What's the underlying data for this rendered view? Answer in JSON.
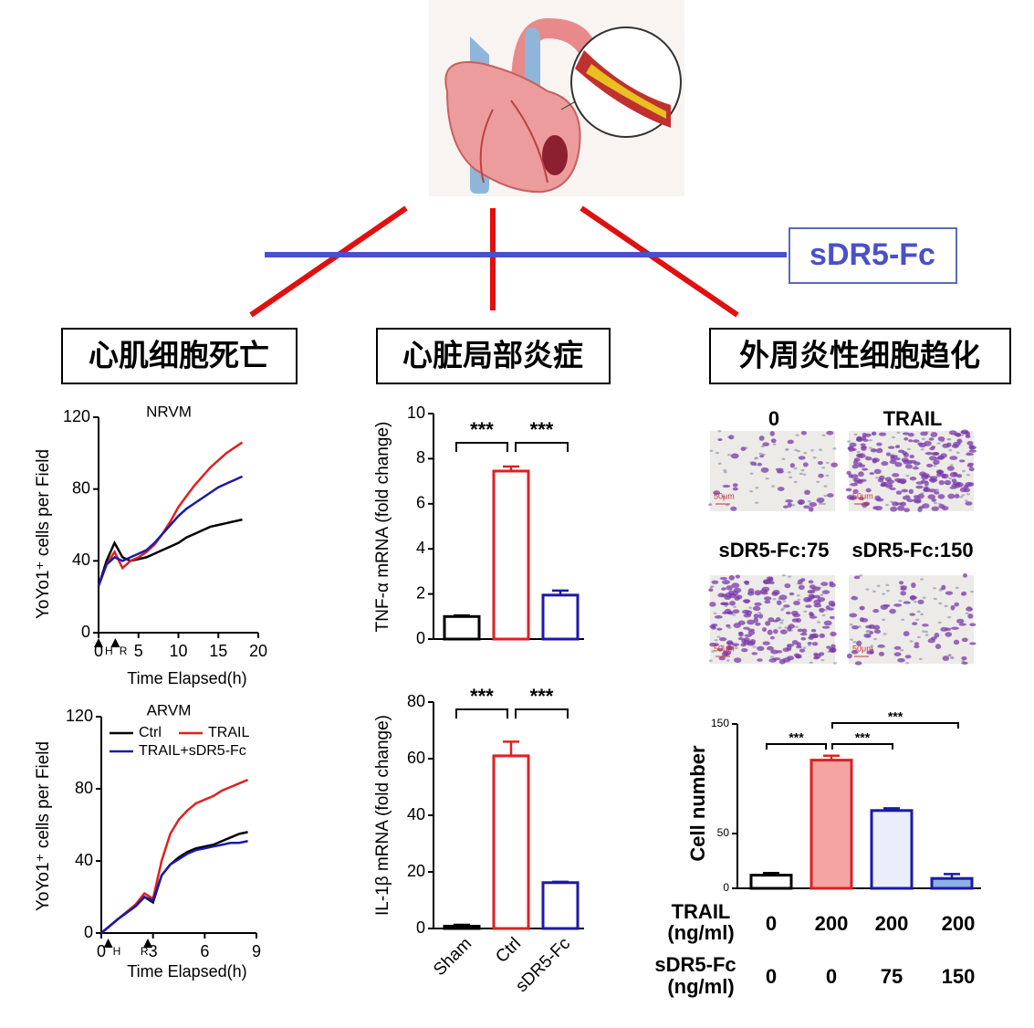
{
  "label_box": "sDR5-Fc",
  "headings": [
    "心肌细胞死亡",
    "心脏局部炎症",
    "外周炎性细胞趋化"
  ],
  "micrographs": {
    "labels": [
      "0",
      "TRAIL",
      "sDR5-Fc:75",
      "sDR5-Fc:150"
    ],
    "scale_bar": "50μm"
  },
  "conditions": {
    "rows": [
      {
        "label": [
          "TRAIL",
          "(ng/ml)"
        ],
        "values": [
          0,
          200,
          200,
          200
        ]
      },
      {
        "label": [
          "sDR5-Fc",
          "(ng/ml)"
        ],
        "values": [
          0,
          0,
          75,
          150
        ]
      }
    ]
  },
  "chart_data": [
    {
      "type": "line",
      "title": "NRVM",
      "y_label": "YoYo1⁺ cells per Field",
      "x_label": "Time Elapsed(h)",
      "x": [
        0,
        1,
        2,
        3,
        4,
        5,
        6,
        7,
        8,
        9,
        10,
        11,
        12,
        13,
        14,
        15,
        16,
        17,
        18
      ],
      "series": [
        {
          "color": "#000000",
          "values": [
            26,
            40,
            50,
            42,
            40,
            41,
            42,
            44,
            46,
            48,
            50,
            53,
            55,
            57,
            59,
            60,
            61,
            62,
            63
          ]
        },
        {
          "color": "#e02020",
          "values": [
            26,
            38,
            45,
            36,
            40,
            42,
            45,
            49,
            55,
            62,
            70,
            76,
            82,
            87,
            92,
            96,
            100,
            103,
            106
          ]
        },
        {
          "color": "#1a1aa8",
          "values": [
            26,
            38,
            42,
            40,
            42,
            44,
            46,
            50,
            55,
            60,
            65,
            69,
            72,
            75,
            78,
            81,
            83,
            85,
            87
          ]
        }
      ],
      "xlim": [
        0,
        20
      ],
      "xticks": [
        0,
        5,
        10,
        15,
        20
      ],
      "ylim": [
        0,
        120
      ],
      "yticks": [
        0,
        40,
        80,
        120
      ],
      "annotations": [
        "H",
        "R"
      ]
    },
    {
      "type": "line",
      "title": "ARVM",
      "y_label": "YoYo1⁺ cells per Field",
      "x_label": "Time Elapsed(h)",
      "x": [
        0,
        1,
        2,
        2.5,
        3,
        3.5,
        4,
        4.5,
        5,
        5.5,
        6,
        6.5,
        7,
        7.5,
        8,
        8.5
      ],
      "series": [
        {
          "name": "Ctrl",
          "color": "#000000",
          "values": [
            0,
            8,
            15,
            20,
            17,
            32,
            38,
            42,
            45,
            47,
            48,
            49,
            51,
            53,
            55,
            56
          ]
        },
        {
          "name": "TRAIL",
          "color": "#e02020",
          "values": [
            0,
            8,
            16,
            22,
            19,
            40,
            55,
            63,
            68,
            72,
            74,
            76,
            79,
            81,
            83,
            85
          ]
        },
        {
          "name": "TRAIL+sDR5-Fc",
          "color": "#1a1aa8",
          "values": [
            0,
            8,
            15,
            20,
            18,
            32,
            38,
            41,
            44,
            46,
            47,
            48,
            49,
            50,
            50,
            51
          ]
        }
      ],
      "xlim": [
        0,
        9
      ],
      "xticks": [
        0,
        3,
        6,
        9
      ],
      "ylim": [
        0,
        120
      ],
      "yticks": [
        0,
        40,
        80,
        120
      ],
      "legend": "upper left",
      "annotations": [
        "H",
        "R"
      ]
    },
    {
      "type": "bar",
      "y_label": "TNF-α mRNA (fold change)",
      "categories": [
        null,
        null,
        null
      ],
      "values": [
        1.0,
        7.45,
        1.95
      ],
      "errors": [
        0.05,
        0.2,
        0.2
      ],
      "colors": [
        "#000000",
        "#e02020",
        "#1a1aa8"
      ],
      "fills": [
        "#ffffff",
        "#ffffff",
        "#ffffff"
      ],
      "ylim": [
        0,
        10
      ],
      "yticks": [
        0,
        2,
        4,
        6,
        8,
        10
      ],
      "significance": [
        "***",
        "***"
      ]
    },
    {
      "type": "bar",
      "y_label": "IL-1β mRNA (fold change)",
      "categories": [
        "Sham",
        "Ctrl",
        "sDR5-Fc"
      ],
      "values": [
        0.8,
        61,
        16.2
      ],
      "errors": [
        0.5,
        5,
        0.3
      ],
      "colors": [
        "#000000",
        "#e02020",
        "#1a1aa8"
      ],
      "fills": [
        "#ffffff",
        "#ffffff",
        "#ffffff"
      ],
      "ylim": [
        0,
        80
      ],
      "yticks": [
        0,
        20,
        40,
        60,
        80
      ],
      "significance": [
        "***",
        "***"
      ]
    },
    {
      "type": "bar",
      "y_label": "Cell number",
      "categories": [
        null,
        null,
        null,
        null
      ],
      "values": [
        12,
        117,
        71,
        9
      ],
      "errors": [
        2,
        4,
        2,
        4
      ],
      "colors": [
        "#000000",
        "#e02020",
        "#1a1aa8",
        "#1a1aa8"
      ],
      "fills": [
        "#ffffff",
        "#f5a3a3",
        "#e9eefa",
        "#8fb0e0"
      ],
      "ylim": [
        0,
        150
      ],
      "yticks": [
        0,
        50,
        150
      ],
      "significance": [
        "***",
        "***",
        "***"
      ]
    }
  ]
}
